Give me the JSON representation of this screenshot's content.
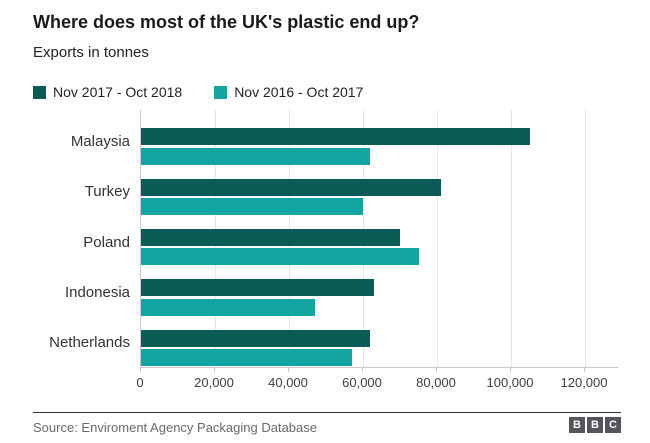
{
  "header": {
    "title": "Where does most of the UK's plastic end up?",
    "subtitle": "Exports in tonnes"
  },
  "legend": [
    {
      "label": "Nov 2017 - Oct 2018",
      "color": "#0d5b56"
    },
    {
      "label": "Nov 2016 - Oct 2017",
      "color": "#12a5a2"
    }
  ],
  "chart_data": {
    "type": "bar",
    "orientation": "horizontal",
    "title": "Where does most of the UK's plastic end up?",
    "subtitle": "Exports in tonnes",
    "xlabel": "",
    "ylabel": "",
    "categories": [
      "Malaysia",
      "Turkey",
      "Poland",
      "Indonesia",
      "Netherlands"
    ],
    "series": [
      {
        "name": "Nov 2017 - Oct 2018",
        "color": "#0d5b56",
        "values": [
          105000,
          81000,
          70000,
          63000,
          62000
        ]
      },
      {
        "name": "Nov 2016 - Oct 2017",
        "color": "#12a5a2",
        "values": [
          62000,
          60000,
          75000,
          47000,
          57000
        ]
      }
    ],
    "x_ticks": [
      0,
      20000,
      40000,
      60000,
      80000,
      100000,
      120000
    ],
    "x_tick_labels": [
      "0",
      "20,000",
      "40,000",
      "60,000",
      "80,000",
      "100,000",
      "120,000"
    ],
    "xlim": [
      0,
      129000
    ],
    "grid": true,
    "legend_position": "top-left"
  },
  "footer": {
    "source": "Source: Enviroment Agency Packaging Database",
    "logo_letters": [
      "B",
      "B",
      "C"
    ],
    "logo_color": "#54565a"
  },
  "colors": {
    "series_dark": "#0d5b56",
    "series_light": "#12a5a2",
    "gridline": "#e5e5e5",
    "axis_line": "#c9c9c9",
    "divider": "#333333"
  }
}
